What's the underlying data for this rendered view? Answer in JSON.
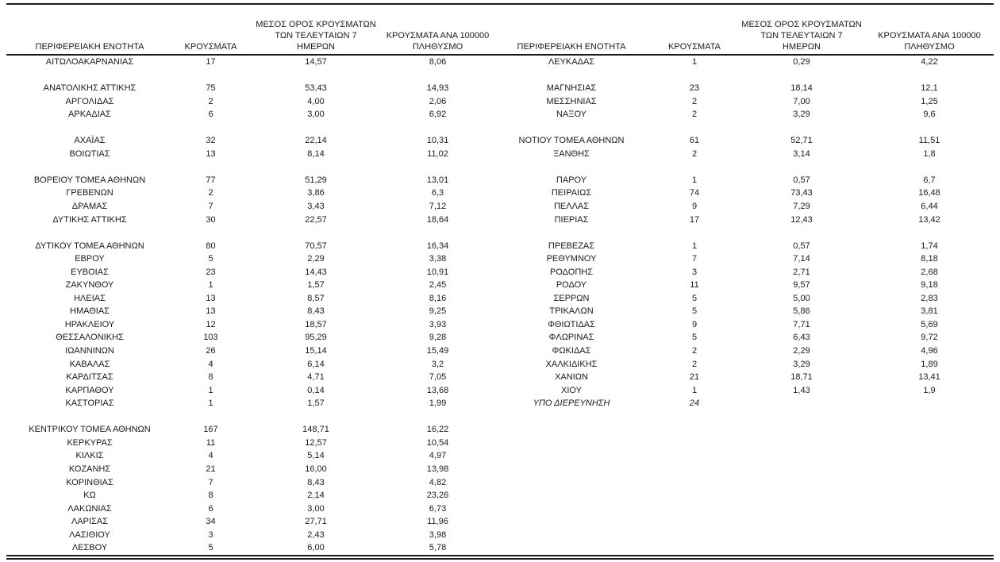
{
  "header": {
    "region": "ΠΕΡΙΦΕΡΕΙΑΚΗ ΕΝΟΤΗΤΑ",
    "cases": "ΚΡΟΥΣΜΑΤΑ",
    "avg7": "ΜΕΣΟΣ ΟΡΟΣ ΚΡΟΥΣΜΑΤΩΝ\nΤΩΝ ΤΕΛΕΥΤΑΙΩΝ 7\nΗΜΕΡΩΝ",
    "per100k": "ΚΡΟΥΣΜΑΤΑ ΑΝΑ 100000\nΠΛΗΘΥΣΜΟ"
  },
  "tables": {
    "left": {
      "rows": [
        {
          "name": "ΑΙΤΩΛΟΑΚΑΡΝΑΝΙΑΣ",
          "cases": "17",
          "avg7": "14,57",
          "per100k": "8,06"
        },
        {
          "spacer": true
        },
        {
          "name": "ΑΝΑΤΟΛΙΚΗΣ ΑΤΤΙΚΗΣ",
          "cases": "75",
          "avg7": "53,43",
          "per100k": "14,93"
        },
        {
          "name": "ΑΡΓΟΛΙΔΑΣ",
          "cases": "2",
          "avg7": "4,00",
          "per100k": "2,06"
        },
        {
          "name": "ΑΡΚΑΔΙΑΣ",
          "cases": "6",
          "avg7": "3,00",
          "per100k": "6,92"
        },
        {
          "spacer": true
        },
        {
          "name": "ΑΧΑΪΑΣ",
          "cases": "32",
          "avg7": "22,14",
          "per100k": "10,31"
        },
        {
          "name": "ΒΟΙΩΤΙΑΣ",
          "cases": "13",
          "avg7": "8,14",
          "per100k": "11,02"
        },
        {
          "spacer": true
        },
        {
          "name": "ΒΟΡΕΙΟΥ ΤΟΜΕΑ ΑΘΗΝΩΝ",
          "cases": "77",
          "avg7": "51,29",
          "per100k": "13,01"
        },
        {
          "name": "ΓΡΕΒΕΝΩΝ",
          "cases": "2",
          "avg7": "3,86",
          "per100k": "6,3"
        },
        {
          "name": "ΔΡΑΜΑΣ",
          "cases": "7",
          "avg7": "3,43",
          "per100k": "7,12"
        },
        {
          "name": "ΔΥΤΙΚΗΣ ΑΤΤΙΚΗΣ",
          "cases": "30",
          "avg7": "22,57",
          "per100k": "18,64"
        },
        {
          "spacer": true
        },
        {
          "name": "ΔΥΤΙΚΟΥ ΤΟΜΕΑ ΑΘΗΝΩΝ",
          "cases": "80",
          "avg7": "70,57",
          "per100k": "16,34"
        },
        {
          "name": "ΕΒΡΟΥ",
          "cases": "5",
          "avg7": "2,29",
          "per100k": "3,38"
        },
        {
          "name": "ΕΥΒΟΙΑΣ",
          "cases": "23",
          "avg7": "14,43",
          "per100k": "10,91"
        },
        {
          "name": "ΖΑΚΥΝΘΟΥ",
          "cases": "1",
          "avg7": "1,57",
          "per100k": "2,45"
        },
        {
          "name": "ΗΛΕΙΑΣ",
          "cases": "13",
          "avg7": "8,57",
          "per100k": "8,16"
        },
        {
          "name": "ΗΜΑΘΙΑΣ",
          "cases": "13",
          "avg7": "8,43",
          "per100k": "9,25"
        },
        {
          "name": "ΗΡΑΚΛΕΙΟΥ",
          "cases": "12",
          "avg7": "18,57",
          "per100k": "3,93"
        },
        {
          "name": "ΘΕΣΣΑΛΟΝΙΚΗΣ",
          "cases": "103",
          "avg7": "95,29",
          "per100k": "9,28"
        },
        {
          "name": "ΙΩΑΝΝΙΝΩΝ",
          "cases": "26",
          "avg7": "15,14",
          "per100k": "15,49"
        },
        {
          "name": "ΚΑΒΑΛΑΣ",
          "cases": "4",
          "avg7": "6,14",
          "per100k": "3,2"
        },
        {
          "name": "ΚΑΡΔΙΤΣΑΣ",
          "cases": "8",
          "avg7": "4,71",
          "per100k": "7,05"
        },
        {
          "name": "ΚΑΡΠΑΘΟΥ",
          "cases": "1",
          "avg7": "0,14",
          "per100k": "13,68"
        },
        {
          "name": "ΚΑΣΤΟΡΙΑΣ",
          "cases": "1",
          "avg7": "1,57",
          "per100k": "1,99"
        },
        {
          "spacer": true
        },
        {
          "name": "ΚΕΝΤΡΙΚΟΥ ΤΟΜΕΑ ΑΘΗΝΩΝ",
          "cases": "167",
          "avg7": "148,71",
          "per100k": "16,22"
        },
        {
          "name": "ΚΕΡΚΥΡΑΣ",
          "cases": "11",
          "avg7": "12,57",
          "per100k": "10,54"
        },
        {
          "name": "ΚΙΛΚΙΣ",
          "cases": "4",
          "avg7": "5,14",
          "per100k": "4,97"
        },
        {
          "name": "ΚΟΖΑΝΗΣ",
          "cases": "21",
          "avg7": "16,00",
          "per100k": "13,98"
        },
        {
          "name": "ΚΟΡΙΝΘΙΑΣ",
          "cases": "7",
          "avg7": "8,43",
          "per100k": "4,82"
        },
        {
          "name": "ΚΩ",
          "cases": "8",
          "avg7": "2,14",
          "per100k": "23,26"
        },
        {
          "name": "ΛΑΚΩΝΙΑΣ",
          "cases": "6",
          "avg7": "3,00",
          "per100k": "6,73"
        },
        {
          "name": "ΛΑΡΙΣΑΣ",
          "cases": "34",
          "avg7": "27,71",
          "per100k": "11,96"
        },
        {
          "name": "ΛΑΣΙΘΙΟΥ",
          "cases": "3",
          "avg7": "2,43",
          "per100k": "3,98"
        },
        {
          "name": "ΛΕΣΒΟΥ",
          "cases": "5",
          "avg7": "6,00",
          "per100k": "5,78"
        }
      ]
    },
    "right": {
      "rows": [
        {
          "name": "ΛΕΥΚΑΔΑΣ",
          "cases": "1",
          "avg7": "0,29",
          "per100k": "4,22"
        },
        {
          "spacer": true
        },
        {
          "name": "ΜΑΓΝΗΣΙΑΣ",
          "cases": "23",
          "avg7": "18,14",
          "per100k": "12,1"
        },
        {
          "name": "ΜΕΣΣΗΝΙΑΣ",
          "cases": "2",
          "avg7": "7,00",
          "per100k": "1,25"
        },
        {
          "name": "ΝΑΞΟΥ",
          "cases": "2",
          "avg7": "3,29",
          "per100k": "9,6"
        },
        {
          "spacer": true
        },
        {
          "name": "ΝΟΤΙΟΥ ΤΟΜΕΑ ΑΘΗΝΩΝ",
          "cases": "61",
          "avg7": "52,71",
          "per100k": "11,51"
        },
        {
          "name": "ΞΑΝΘΗΣ",
          "cases": "2",
          "avg7": "3,14",
          "per100k": "1,8"
        },
        {
          "spacer": true
        },
        {
          "name": "ΠΑΡΟΥ",
          "cases": "1",
          "avg7": "0,57",
          "per100k": "6,7"
        },
        {
          "name": "ΠΕΙΡΑΙΩΣ",
          "cases": "74",
          "avg7": "73,43",
          "per100k": "16,48"
        },
        {
          "name": "ΠΕΛΛΑΣ",
          "cases": "9",
          "avg7": "7,29",
          "per100k": "6,44"
        },
        {
          "name": "ΠΙΕΡΙΑΣ",
          "cases": "17",
          "avg7": "12,43",
          "per100k": "13,42"
        },
        {
          "spacer": true
        },
        {
          "name": "ΠΡΕΒΕΖΑΣ",
          "cases": "1",
          "avg7": "0,57",
          "per100k": "1,74"
        },
        {
          "name": "ΡΕΘΥΜΝΟΥ",
          "cases": "7",
          "avg7": "7,14",
          "per100k": "8,18"
        },
        {
          "name": "ΡΟΔΟΠΗΣ",
          "cases": "3",
          "avg7": "2,71",
          "per100k": "2,68"
        },
        {
          "name": "ΡΟΔΟΥ",
          "cases": "11",
          "avg7": "9,57",
          "per100k": "9,18"
        },
        {
          "name": "ΣΕΡΡΩΝ",
          "cases": "5",
          "avg7": "5,00",
          "per100k": "2,83"
        },
        {
          "name": "ΤΡΙΚΑΛΩΝ",
          "cases": "5",
          "avg7": "5,86",
          "per100k": "3,81"
        },
        {
          "name": "ΦΘΙΩΤΙΔΑΣ",
          "cases": "9",
          "avg7": "7,71",
          "per100k": "5,69"
        },
        {
          "name": "ΦΛΩΡΙΝΑΣ",
          "cases": "5",
          "avg7": "6,43",
          "per100k": "9,72"
        },
        {
          "name": "ΦΩΚΙΔΑΣ",
          "cases": "2",
          "avg7": "2,29",
          "per100k": "4,96"
        },
        {
          "name": "ΧΑΛΚΙΔΙΚΗΣ",
          "cases": "2",
          "avg7": "3,29",
          "per100k": "1,89"
        },
        {
          "name": "ΧΑΝΙΩΝ",
          "cases": "21",
          "avg7": "18,71",
          "per100k": "13,41"
        },
        {
          "name": "ΧΙΟΥ",
          "cases": "1",
          "avg7": "1,43",
          "per100k": "1,9"
        },
        {
          "name": "ΥΠΟ ΔΙΕΡΕΥΝΗΣΗ",
          "cases": "24",
          "avg7": "",
          "per100k": "",
          "italic": true
        }
      ]
    }
  }
}
